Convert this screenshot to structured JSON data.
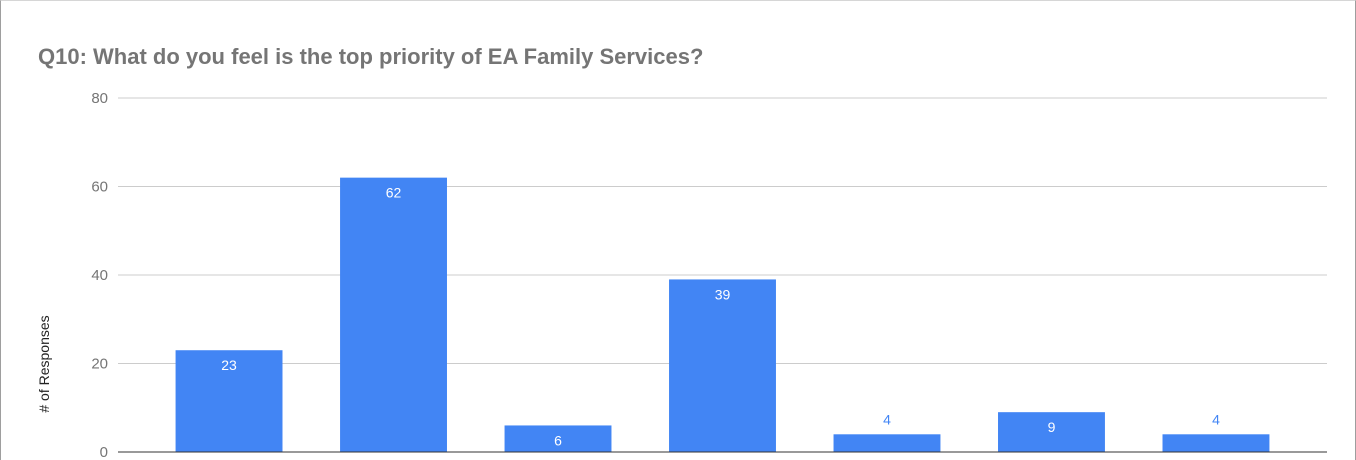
{
  "chart_data": {
    "type": "bar",
    "title": "Q10: What do you feel is the top priority of EA Family Services?",
    "ylabel": "# of Responses",
    "xlabel": "",
    "ylim": [
      0,
      80
    ],
    "yticks": [
      0,
      20,
      40,
      60,
      80
    ],
    "values": [
      23,
      62,
      6,
      39,
      4,
      9,
      4
    ],
    "bar_color": "#4285f4",
    "grid": true,
    "legend": "none"
  }
}
